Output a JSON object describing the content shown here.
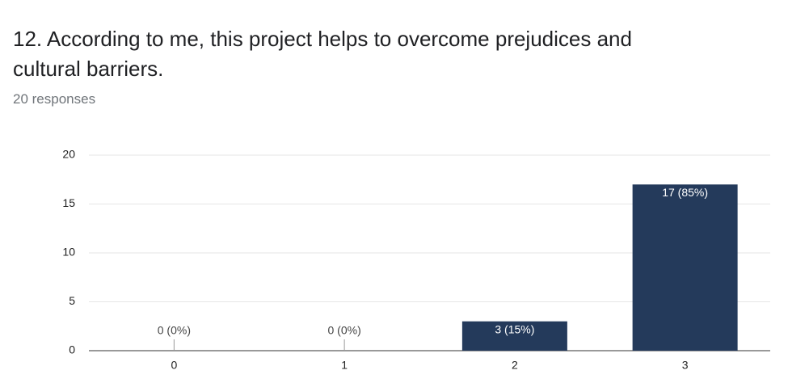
{
  "chart_data": {
    "type": "bar",
    "title": "12. According to me, this project helps to overcome prejudices and cultural barriers.",
    "subtitle": "20 responses",
    "categories": [
      "0",
      "1",
      "2",
      "3"
    ],
    "values": [
      0,
      0,
      3,
      17
    ],
    "value_labels": [
      "0 (0%)",
      "0 (0%)",
      "3 (15%)",
      "17 (85%)"
    ],
    "color": "#243a5b",
    "ylim": [
      0,
      20
    ],
    "yticks": [
      0,
      5,
      10,
      15,
      20
    ],
    "grid": true
  }
}
